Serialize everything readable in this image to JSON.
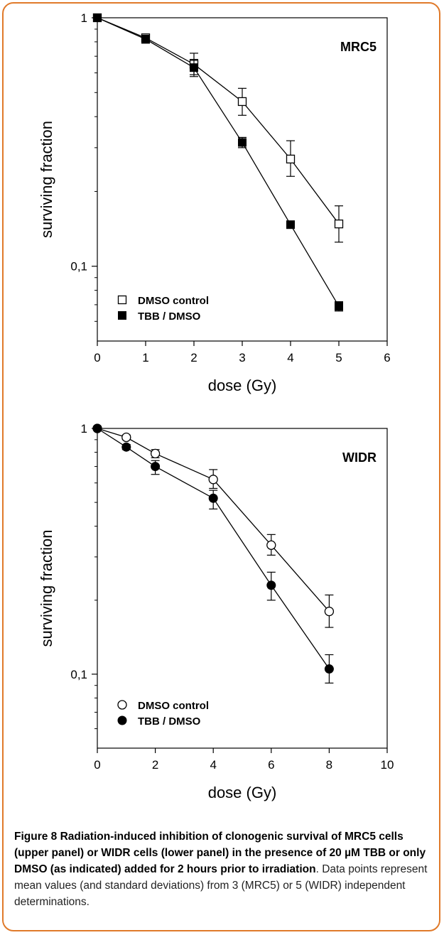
{
  "chart_data": [
    {
      "type": "scatter",
      "scale": "log",
      "panel_label": "MRC5",
      "xlabel": "dose (Gy)",
      "ylabel": "surviving fraction",
      "xlim": [
        0,
        6
      ],
      "ylim": [
        0.05,
        1
      ],
      "xticks": [
        "0",
        "1",
        "2",
        "3",
        "4",
        "5",
        "6"
      ],
      "yticks": [
        {
          "value": 1,
          "label": "1"
        },
        {
          "value": 0.1,
          "label": "0,1"
        }
      ],
      "series": [
        {
          "name": "DMSO control",
          "marker": "open-square",
          "x": [
            0,
            1,
            2,
            3,
            4,
            5
          ],
          "y": [
            1.0,
            0.83,
            0.65,
            0.46,
            0.27,
            0.148
          ],
          "err_low": [
            1.0,
            0.8,
            0.59,
            0.405,
            0.23,
            0.125
          ],
          "err_high": [
            1.0,
            0.86,
            0.72,
            0.52,
            0.32,
            0.175
          ]
        },
        {
          "name": "TBB / DMSO",
          "marker": "filled-square",
          "x": [
            0,
            1,
            2,
            3,
            4,
            5
          ],
          "y": [
            1.0,
            0.82,
            0.63,
            0.315,
            0.147,
            0.069
          ],
          "err_low": [
            1.0,
            0.79,
            0.58,
            0.3,
            0.143,
            0.066
          ],
          "err_high": [
            1.0,
            0.85,
            0.68,
            0.33,
            0.151,
            0.072
          ]
        }
      ]
    },
    {
      "type": "scatter",
      "scale": "log",
      "panel_label": "WIDR",
      "xlabel": "dose (Gy)",
      "ylabel": "surviving fraction",
      "xlim": [
        0,
        10
      ],
      "ylim": [
        0.05,
        1
      ],
      "xticks": [
        "0",
        "2",
        "4",
        "6",
        "8",
        "10"
      ],
      "yticks": [
        {
          "value": 1,
          "label": "1"
        },
        {
          "value": 0.1,
          "label": "0,1"
        }
      ],
      "series": [
        {
          "name": "DMSO control",
          "marker": "open-circle",
          "x": [
            0,
            1,
            2,
            4,
            6,
            8
          ],
          "y": [
            1.0,
            0.92,
            0.79,
            0.62,
            0.335,
            0.18
          ],
          "err_low": [
            1.0,
            0.9,
            0.76,
            0.57,
            0.305,
            0.155
          ],
          "err_high": [
            1.0,
            0.94,
            0.82,
            0.68,
            0.37,
            0.21
          ]
        },
        {
          "name": "TBB / DMSO",
          "marker": "filled-circle",
          "x": [
            0,
            1,
            2,
            4,
            6,
            8
          ],
          "y": [
            1.0,
            0.84,
            0.7,
            0.52,
            0.23,
            0.105
          ],
          "err_low": [
            1.0,
            0.82,
            0.65,
            0.47,
            0.2,
            0.092
          ],
          "err_high": [
            1.0,
            0.86,
            0.74,
            0.56,
            0.26,
            0.12
          ]
        }
      ]
    }
  ],
  "caption": {
    "bold": "Figure 8 Radiation-induced inhibition of clonogenic survival of MRC5 cells (upper panel) or WIDR cells (lower panel) in the presence of 20 µM TBB or only DMSO (as indicated) added for 2 hours prior to irradiation",
    "rest": ". Data points represent mean values (and standard deviations) from 3 (MRC5) or 5 (WIDR) independent determinations."
  }
}
